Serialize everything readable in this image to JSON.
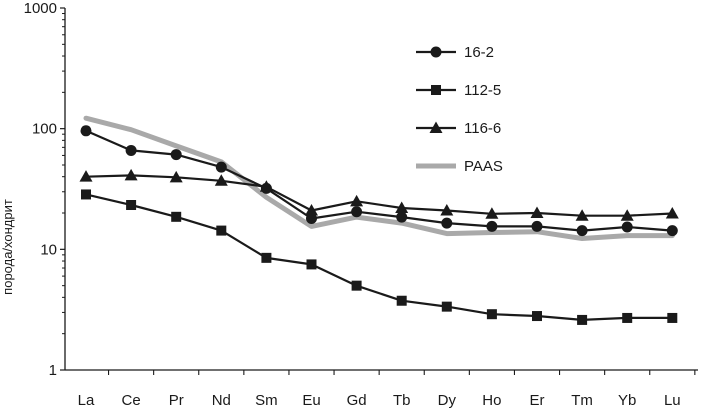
{
  "chart_data": {
    "type": "line",
    "title": "",
    "xlabel": "",
    "ylabel": "порода/хондрит",
    "yscale": "log",
    "ylim": [
      1,
      1000
    ],
    "ytick_labels": [
      "1",
      "10",
      "100",
      "1000"
    ],
    "ytick_values": [
      1,
      10,
      100,
      1000
    ],
    "grid": false,
    "legend_position": "top-right",
    "categories": [
      "La",
      "Ce",
      "Pr",
      "Nd",
      "Sm",
      "Eu",
      "Gd",
      "Tb",
      "Dy",
      "Ho",
      "Er",
      "Tm",
      "Yb",
      "Lu"
    ],
    "series": [
      {
        "name": "16-2",
        "marker": "circle",
        "color": "#1a1a1a",
        "values": [
          96,
          66,
          61,
          48,
          32,
          18,
          20.5,
          18.5,
          16.5,
          15.5,
          15.5,
          14.3,
          15.3,
          14.3
        ]
      },
      {
        "name": "112-5",
        "marker": "square",
        "color": "#1a1a1a",
        "values": [
          28.5,
          23.3,
          18.6,
          14.3,
          8.5,
          7.5,
          5,
          3.75,
          3.35,
          2.9,
          2.8,
          2.6,
          2.7,
          2.7
        ]
      },
      {
        "name": "116-6",
        "marker": "triangle",
        "color": "#1a1a1a",
        "values": [
          40,
          41,
          39.5,
          37,
          33,
          21,
          25,
          22,
          21,
          19.7,
          20,
          19,
          19,
          19.8
        ]
      },
      {
        "name": "PAAS",
        "marker": "none",
        "color": "#a9a9a9",
        "values": [
          122,
          98,
          72,
          53,
          27,
          15.5,
          18.5,
          16.5,
          13.5,
          13.8,
          14,
          12.3,
          13,
          13
        ]
      }
    ]
  }
}
